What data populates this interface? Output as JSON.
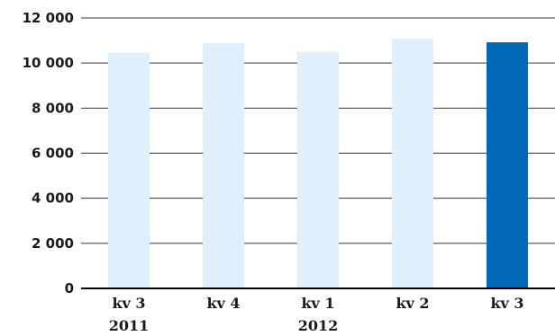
{
  "chart_data": {
    "type": "bar",
    "categories": [
      "kv 3",
      "kv 4",
      "kv 1",
      "kv 2",
      "kv 3"
    ],
    "year_labels": [
      "2011",
      "",
      "2012",
      "",
      ""
    ],
    "values": [
      10450,
      10870,
      10500,
      11080,
      10920
    ],
    "highlight_index": 4,
    "y_ticks": [
      "0",
      "2 000",
      "4 000",
      "6 000",
      "8 000",
      "10 000",
      "12 000"
    ],
    "ylim": [
      0,
      12000
    ],
    "grid": true,
    "colors": {
      "bar": "#dff0fc",
      "highlight": "#0068b4"
    }
  }
}
